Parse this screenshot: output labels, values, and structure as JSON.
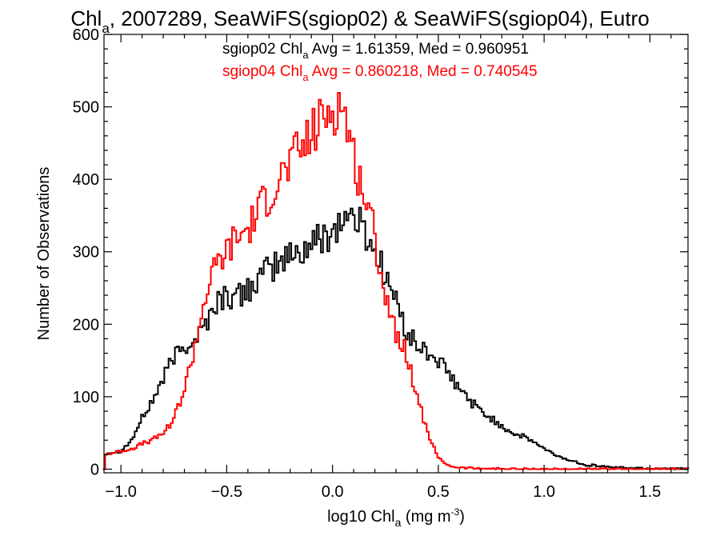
{
  "chart_data": {
    "type": "line",
    "style": "histogram-step",
    "title": "Chla, 2007289, SeaWiFS(sgiop02) & SeaWiFS(sgiop04), Eutro",
    "title_parts": {
      "pre": "Chl",
      "sub": "a",
      "post": ", 2007289, SeaWiFS(sgiop02) & SeaWiFS(sgiop04), Eutro"
    },
    "xlabel": "log10 Chla (mg m-3)",
    "xlabel_parts": {
      "pre": "log10 Chl",
      "sub": "a",
      "mid": " (mg m",
      "sup": "-3",
      "post": ")"
    },
    "ylabel": "Number of Observations",
    "xlim": [
      -1.08,
      1.68
    ],
    "ylim": [
      -5,
      600
    ],
    "x_ticks": [
      {
        "v": -1.0,
        "label": "−1.0"
      },
      {
        "v": -0.5,
        "label": "−0.5"
      },
      {
        "v": 0.0,
        "label": "0.0"
      },
      {
        "v": 0.5,
        "label": "0.5"
      },
      {
        "v": 1.0,
        "label": "1.0"
      },
      {
        "v": 1.5,
        "label": "1.5"
      }
    ],
    "y_ticks": [
      {
        "v": 0,
        "label": "0"
      },
      {
        "v": 100,
        "label": "100"
      },
      {
        "v": 200,
        "label": "200"
      },
      {
        "v": 300,
        "label": "300"
      },
      {
        "v": 400,
        "label": "400"
      },
      {
        "v": 500,
        "label": "500"
      },
      {
        "v": 600,
        "label": "600"
      }
    ],
    "grid": false,
    "legend_position": "top",
    "series": [
      {
        "name": "sgiop02",
        "color": "#000000",
        "legend": {
          "pre": "sgiop02 Chl",
          "sub": "a",
          "post": " Avg = 1.61359, Med = 0.960951"
        },
        "points": [
          [
            -1.07,
            22
          ],
          [
            -1.0,
            25
          ],
          [
            -0.95,
            40
          ],
          [
            -0.9,
            70
          ],
          [
            -0.85,
            95
          ],
          [
            -0.8,
            125
          ],
          [
            -0.75,
            155
          ],
          [
            -0.7,
            170
          ],
          [
            -0.65,
            180
          ],
          [
            -0.6,
            200
          ],
          [
            -0.55,
            230
          ],
          [
            -0.5,
            240
          ],
          [
            -0.45,
            235
          ],
          [
            -0.4,
            250
          ],
          [
            -0.35,
            260
          ],
          [
            -0.3,
            275
          ],
          [
            -0.25,
            285
          ],
          [
            -0.2,
            295
          ],
          [
            -0.15,
            300
          ],
          [
            -0.1,
            310
          ],
          [
            -0.05,
            320
          ],
          [
            0.0,
            330
          ],
          [
            0.05,
            345
          ],
          [
            0.1,
            350
          ],
          [
            0.15,
            330
          ],
          [
            0.2,
            300
          ],
          [
            0.25,
            270
          ],
          [
            0.3,
            230
          ],
          [
            0.35,
            190
          ],
          [
            0.4,
            170
          ],
          [
            0.45,
            160
          ],
          [
            0.5,
            150
          ],
          [
            0.55,
            130
          ],
          [
            0.6,
            110
          ],
          [
            0.65,
            95
          ],
          [
            0.7,
            80
          ],
          [
            0.75,
            70
          ],
          [
            0.8,
            60
          ],
          [
            0.85,
            50
          ],
          [
            0.9,
            45
          ],
          [
            0.95,
            38
          ],
          [
            1.0,
            28
          ],
          [
            1.05,
            20
          ],
          [
            1.1,
            14
          ],
          [
            1.15,
            10
          ],
          [
            1.2,
            6
          ],
          [
            1.25,
            5
          ],
          [
            1.3,
            3
          ],
          [
            1.35,
            2
          ],
          [
            1.4,
            2
          ],
          [
            1.5,
            1
          ],
          [
            1.6,
            1
          ],
          [
            1.68,
            0
          ]
        ]
      },
      {
        "name": "sgiop04",
        "color": "#ff0000",
        "legend": {
          "pre": "sgiop04 Chl",
          "sub": "a",
          "post": " Avg = 0.860218, Med = 0.740545"
        },
        "points": [
          [
            -1.07,
            20
          ],
          [
            -1.0,
            25
          ],
          [
            -0.95,
            28
          ],
          [
            -0.9,
            35
          ],
          [
            -0.85,
            40
          ],
          [
            -0.8,
            50
          ],
          [
            -0.75,
            70
          ],
          [
            -0.7,
            110
          ],
          [
            -0.65,
            170
          ],
          [
            -0.6,
            240
          ],
          [
            -0.55,
            280
          ],
          [
            -0.5,
            300
          ],
          [
            -0.45,
            320
          ],
          [
            -0.4,
            330
          ],
          [
            -0.35,
            355
          ],
          [
            -0.3,
            380
          ],
          [
            -0.25,
            400
          ],
          [
            -0.2,
            420
          ],
          [
            -0.15,
            440
          ],
          [
            -0.1,
            460
          ],
          [
            -0.05,
            480
          ],
          [
            0.0,
            500
          ],
          [
            0.05,
            500
          ],
          [
            0.1,
            430
          ],
          [
            0.15,
            380
          ],
          [
            0.2,
            320
          ],
          [
            0.25,
            240
          ],
          [
            0.3,
            190
          ],
          [
            0.35,
            160
          ],
          [
            0.4,
            100
          ],
          [
            0.45,
            50
          ],
          [
            0.5,
            15
          ],
          [
            0.55,
            5
          ],
          [
            0.6,
            2
          ],
          [
            0.7,
            1
          ],
          [
            0.9,
            0
          ],
          [
            1.68,
            0
          ]
        ]
      }
    ]
  }
}
